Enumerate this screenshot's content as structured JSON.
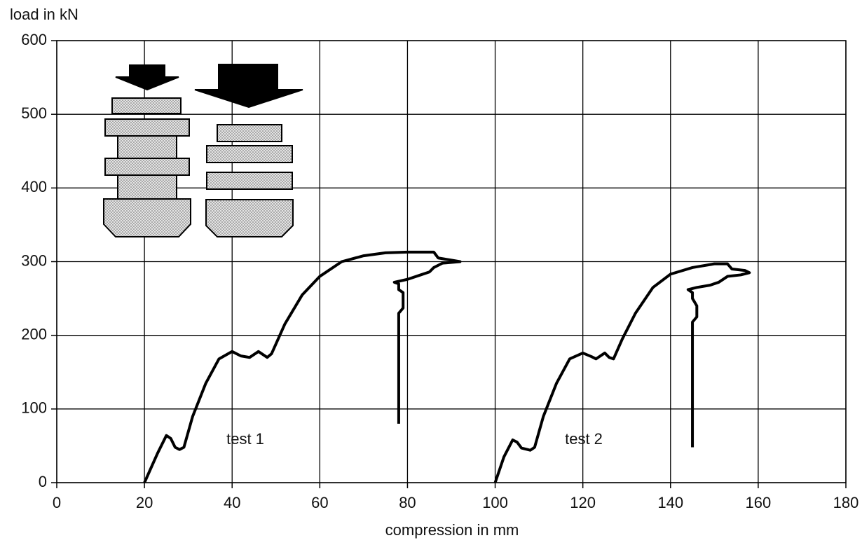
{
  "chart_data": {
    "type": "line",
    "y_label": "load in kN",
    "x_label": "compression in mm",
    "xlim": [
      0,
      180
    ],
    "xticks": [
      0,
      20,
      40,
      60,
      80,
      100,
      120,
      140,
      160,
      180
    ],
    "ylim": [
      0,
      600
    ],
    "yticks": [
      0,
      100,
      200,
      300,
      400,
      500,
      600
    ],
    "grid": true,
    "series": [
      {
        "name": "test 1",
        "color": "#000000",
        "x": [
          20,
          23,
          25,
          26,
          27,
          28,
          29,
          31,
          34,
          37,
          40,
          42,
          44,
          46,
          48,
          49,
          52,
          56,
          60,
          65,
          70,
          75,
          80,
          86,
          87,
          90,
          92,
          88,
          86,
          85,
          83,
          80,
          77,
          78,
          78,
          79,
          79,
          79,
          78,
          78,
          78
        ],
        "values": [
          0,
          40,
          64,
          60,
          48,
          45,
          48,
          90,
          135,
          168,
          178,
          172,
          170,
          178,
          170,
          175,
          215,
          255,
          280,
          300,
          308,
          312,
          313,
          313,
          305,
          302,
          300,
          298,
          292,
          286,
          282,
          276,
          272,
          270,
          262,
          258,
          245,
          237,
          230,
          200,
          80
        ]
      },
      {
        "name": "test 2",
        "color": "#000000",
        "x": [
          100,
          102,
          104,
          105,
          106,
          108,
          109,
          111,
          114,
          117,
          120,
          122,
          123,
          125,
          126,
          127,
          129,
          132,
          136,
          140,
          145,
          150,
          153,
          154,
          157,
          158,
          156,
          153,
          151,
          149,
          146,
          144,
          145,
          145,
          146,
          146,
          145,
          145,
          145
        ],
        "values": [
          0,
          35,
          58,
          55,
          47,
          44,
          48,
          90,
          135,
          168,
          176,
          171,
          168,
          176,
          170,
          168,
          195,
          230,
          265,
          283,
          292,
          297,
          297,
          290,
          288,
          285,
          282,
          280,
          272,
          268,
          265,
          262,
          258,
          250,
          240,
          225,
          218,
          150,
          48
        ]
      }
    ]
  }
}
